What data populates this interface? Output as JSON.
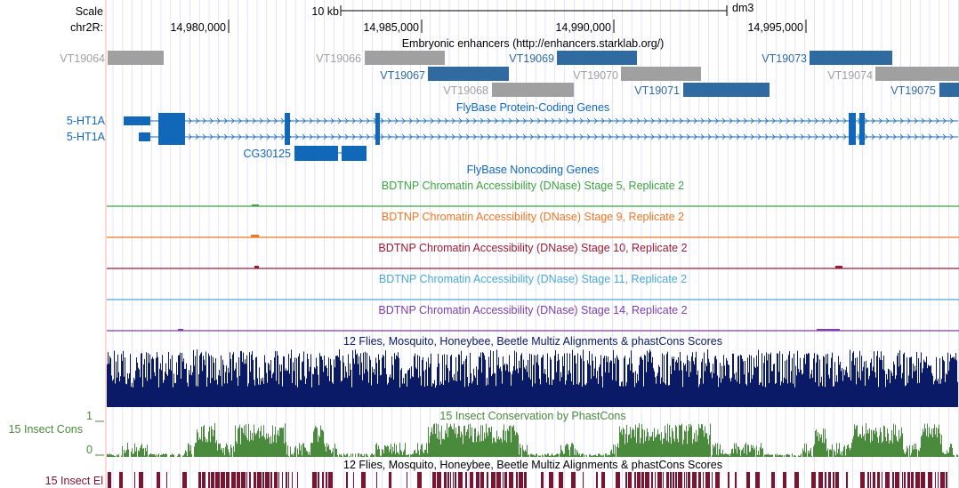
{
  "header": {
    "scale_label": "Scale",
    "scale_value": "10 kb",
    "assembly": "dm3",
    "chrom_label": "chr2R:",
    "positions": [
      "14,980,000",
      "14,985,000",
      "14,990,000",
      "14,995,000"
    ]
  },
  "enhancers": {
    "title": "Embryonic enhancers (http://enhancers.starklab.org/)",
    "items": [
      {
        "name": "VT19064",
        "status": "inactive"
      },
      {
        "name": "VT19066",
        "status": "inactive"
      },
      {
        "name": "VT19067",
        "status": "active"
      },
      {
        "name": "VT19068",
        "status": "inactive"
      },
      {
        "name": "VT19069",
        "status": "active"
      },
      {
        "name": "VT19070",
        "status": "inactive"
      },
      {
        "name": "VT19071",
        "status": "active"
      },
      {
        "name": "VT19073",
        "status": "active"
      },
      {
        "name": "VT19074",
        "status": "inactive"
      },
      {
        "name": "VT19075",
        "status": "active"
      }
    ]
  },
  "genes": {
    "title": "FlyBase Protein-Coding Genes",
    "names": [
      "5-HT1A",
      "5-HT1A",
      "CG30125"
    ]
  },
  "noncoding": {
    "title": "FlyBase Noncoding Genes"
  },
  "dnase_tracks": [
    {
      "title": "BDTNP Chromatin Accessibility (DNase) Stage 5, Replicate 2",
      "color": "#3fa43f"
    },
    {
      "title": "BDTNP Chromatin Accessibility (DNase) Stage 9, Replicate 2",
      "color": "#ee7722"
    },
    {
      "title": "BDTNP Chromatin Accessibility (DNase) Stage 10, Replicate 2",
      "color": "#9b1b30"
    },
    {
      "title": "BDTNP Chromatin Accessibility (DNase) Stage 11, Replicate 2",
      "color": "#4aa8d8"
    },
    {
      "title": "BDTNP Chromatin Accessibility (DNase) Stage 14, Replicate 2",
      "color": "#7b3fa8"
    }
  ],
  "multiz": {
    "title": "12 Flies, Mosquito, Honeybee, Beetle Multiz Alignments & phastCons Scores"
  },
  "conservation": {
    "title": "15 Insect Conservation by PhastCons",
    "side_label": "15 Insect Cons",
    "axis_top": "1",
    "axis_bottom": "0"
  },
  "elements": {
    "title": "12 Flies, Mosquito, Honeybee, Beetle Multiz Alignments & phastCons Scores",
    "side_label": "15 Insect El"
  },
  "colors": {
    "active": "#2f6ba0",
    "inactive": "#a0a0a0",
    "gene": "#1167b8",
    "multiz": "#0a1a66",
    "cons": "#4a8a3c",
    "elements": "#7a1430",
    "grid": "#d0d0ff",
    "left_border": "#ffb0b0"
  }
}
